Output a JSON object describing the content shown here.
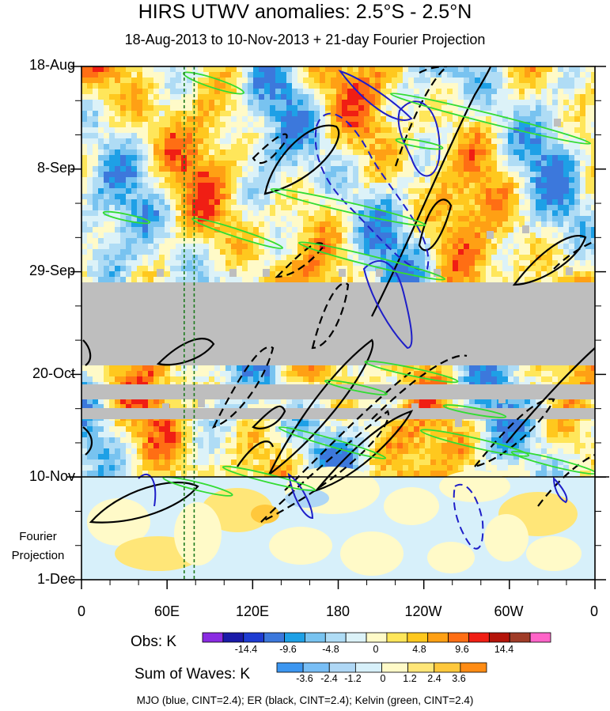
{
  "chart_data": {
    "type": "heatmap",
    "title": "HIRS UTWV anomalies: 2.5°S - 2.5°N",
    "subtitle": "18-Aug-2013 to 10-Nov-2013 + 21-day Fourier Projection",
    "y_axis": {
      "labels": [
        "18-Aug",
        "8-Sep",
        "29-Sep",
        "20-Oct",
        "10-Nov",
        "1-Dec"
      ],
      "direction": "time increasing downward"
    },
    "x_axis": {
      "labels": [
        "0",
        "60E",
        "120E",
        "180",
        "120W",
        "60W",
        "0"
      ],
      "range_deg": [
        0,
        360
      ]
    },
    "forecast_label": [
      "Fourier",
      "Projection"
    ],
    "missing_data_bands": [
      "2-Oct to 19-Oct",
      "22-Oct to 24-Oct",
      "26-Oct to 28-Oct"
    ],
    "vertical_reference_lines_deg": [
      72,
      79
    ],
    "obs_colorbar": {
      "title": "Obs: K",
      "labels": [
        "-14.4",
        "-9.6",
        "-4.8",
        "0",
        "4.8",
        "9.6",
        "14.4"
      ],
      "colors": [
        "#8a2be2",
        "#1a1aa8",
        "#1e3cd2",
        "#3c78dc",
        "#1ea0e6",
        "#78c3f0",
        "#afdcf5",
        "#dcf2f8",
        "#fffac8",
        "#ffe65a",
        "#ffc81e",
        "#ffa014",
        "#ff6e14",
        "#f01e14",
        "#b4140a",
        "#a03c28",
        "#ff64c8"
      ]
    },
    "waves_colorbar": {
      "title": "Sum of Waves: K",
      "labels": [
        "-3.6",
        "-2.4",
        "-1.2",
        "0",
        "1.2",
        "2.4",
        "3.6"
      ],
      "colors": [
        "#3c96f0",
        "#78bef5",
        "#afd7f5",
        "#d7f0fa",
        "#fffac8",
        "#ffe678",
        "#ffc83c",
        "#ff8c14"
      ]
    },
    "contours": {
      "mjo": {
        "color": "#1e1ec8",
        "cint": 2.4
      },
      "er": {
        "color": "#000000",
        "cint": 2.4
      },
      "kelvin": {
        "color": "#32dc32",
        "cint": 2.4
      }
    },
    "footer": "MJO (blue, CINT=2.4); ER (black, CINT=2.4); Kelvin (green, CINT=2.4)"
  }
}
